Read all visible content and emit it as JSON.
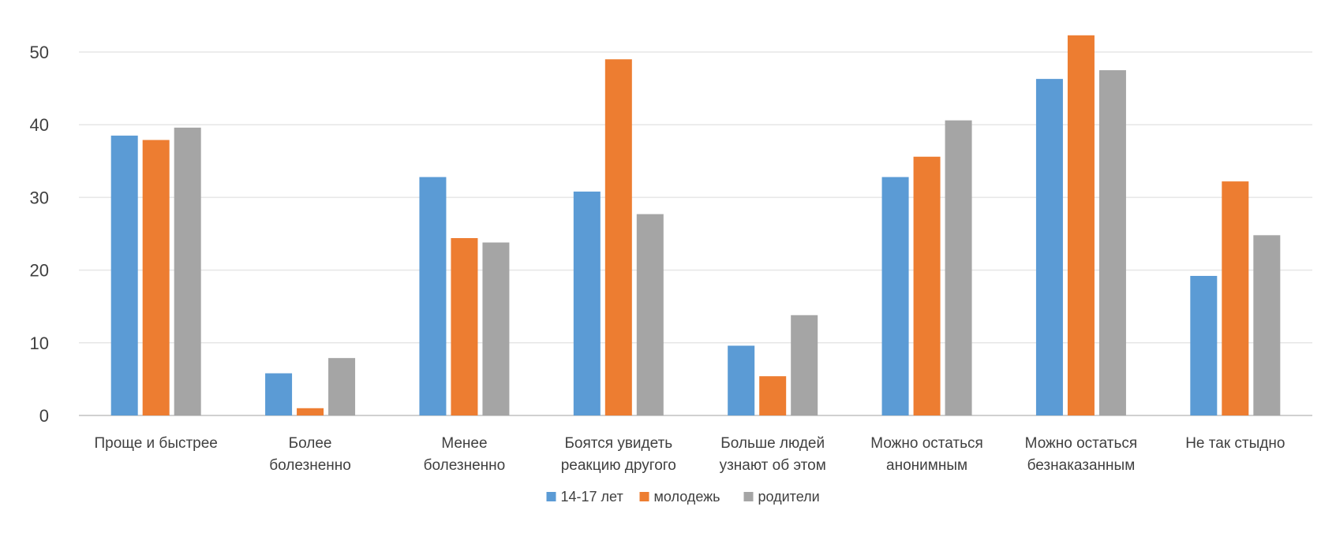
{
  "chart_data": {
    "type": "bar",
    "categories": [
      [
        "Проще и быстрее"
      ],
      [
        "Более",
        "болезненно"
      ],
      [
        "Менее",
        "болезненно"
      ],
      [
        "Боятся увидеть",
        "реакцию другого"
      ],
      [
        "Больше людей",
        "узнают об этом"
      ],
      [
        "Можно остаться",
        "анонимным"
      ],
      [
        "Можно остаться",
        "безнаказанным"
      ],
      [
        "Не так стыдно"
      ]
    ],
    "series": [
      {
        "name": "14-17 лет",
        "color": "#5B9BD5",
        "values": [
          38.5,
          5.8,
          32.8,
          30.8,
          9.6,
          32.8,
          46.3,
          19.2
        ]
      },
      {
        "name": "молодежь",
        "color": "#ED7D31",
        "values": [
          37.9,
          1.0,
          24.4,
          49.0,
          5.4,
          35.6,
          52.3,
          32.2
        ]
      },
      {
        "name": "родители",
        "color": "#A5A5A5",
        "values": [
          39.6,
          7.9,
          23.8,
          27.7,
          13.8,
          40.6,
          47.5,
          24.8
        ]
      }
    ],
    "y_ticks": [
      "0",
      "10",
      "20",
      "30",
      "40",
      "50"
    ],
    "ylim": [
      0,
      55
    ],
    "grid": true,
    "legend": "bottom-center",
    "title": "",
    "xlabel": "",
    "ylabel": ""
  }
}
